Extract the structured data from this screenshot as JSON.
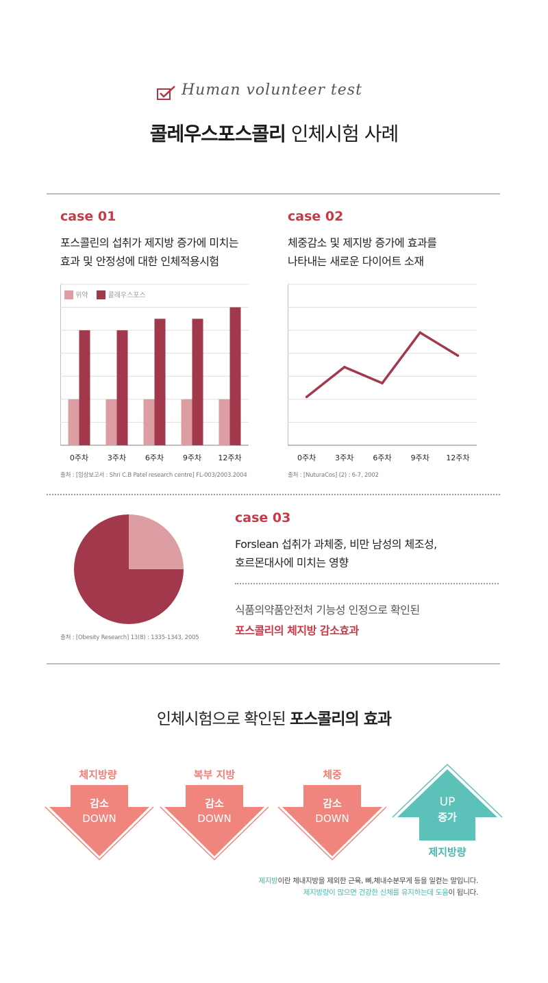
{
  "header": {
    "script_title": "Human volunteer test",
    "title_bold": "콜레우스포스콜리",
    "title_normal": " 인체시험 사례"
  },
  "case1": {
    "label": "case 01",
    "desc_line1": "포스콜린의 섭취가 제지방 증가에 미치는",
    "desc_line2": "효과 및 안정성에 대한 인체적용시험",
    "source": "출처 : [임상보고서 : Shri C.B Patel research centre] FL-003/2003.2004"
  },
  "case2": {
    "label": "case 02",
    "desc_line1": "체중감소 및 제지방 증가에 효과를",
    "desc_line2": "나타내는 새로운 다이어트 소재",
    "source": "출처 : [NuturaCos] (2) : 6-7, 2002"
  },
  "case3": {
    "label": "case 03",
    "desc_line1": "Forslean 섭취가 과체중, 비만 남성의 체조성,",
    "desc_line2": "호르몬대사에 미치는 영향",
    "confirm_line": "식품의약품안전처 기능성 인정으로 확인된",
    "highlight": "포스콜리의 체지방 감소효과",
    "source": "출처 : [Obesity Research] 13(8) : 1335-1343, 2005"
  },
  "chart_data": [
    {
      "type": "bar",
      "categories": [
        "0주차",
        "3주차",
        "6주차",
        "9주차",
        "12주차"
      ],
      "series": [
        {
          "name": "위약",
          "values": [
            2,
            2,
            2,
            2,
            2
          ]
        },
        {
          "name": "콜레우스포스",
          "values": [
            5,
            5,
            5.5,
            5.5,
            6
          ]
        }
      ],
      "ylim": [
        0,
        7
      ],
      "grid": true,
      "legend": "top-left",
      "colors": [
        "#dd9ea3",
        "#a2384c"
      ]
    },
    {
      "type": "line",
      "categories": [
        "0주차",
        "3주차",
        "6주차",
        "9주차",
        "12주차"
      ],
      "series": [
        {
          "values": [
            2.1,
            3.4,
            2.7,
            4.9,
            3.9
          ]
        }
      ],
      "ylim": [
        0,
        7
      ],
      "grid": true,
      "colors": [
        "#a2384c"
      ]
    },
    {
      "type": "pie",
      "values": [
        75,
        25
      ],
      "colors": [
        "#a2384c",
        "#dd9ea3"
      ]
    }
  ],
  "effects": {
    "title_normal": "인체시험으로 확인된 ",
    "title_bold": "포스콜리의 효과",
    "items": [
      {
        "label": "체지방량",
        "kor": "감소",
        "eng": "DOWN"
      },
      {
        "label": "복부 지방",
        "kor": "감소",
        "eng": "DOWN"
      },
      {
        "label": "체중",
        "kor": "감소",
        "eng": "DOWN"
      }
    ],
    "up": {
      "eng": "UP",
      "kor": "증가",
      "label": "제지방량"
    },
    "colors": {
      "down": "#ef857c",
      "up": "#5cc1b8"
    }
  },
  "note": {
    "line1_teal": "제지방",
    "line1_rest": "이란 체내지방을 제외한 근육, 뼈,체내수분무게 등을 일컫는 말입니다.",
    "line2_teal": "제지방량이 많으면 건강한 신체를 유지하는데 도움",
    "line2_rest": "이 됩니다."
  }
}
